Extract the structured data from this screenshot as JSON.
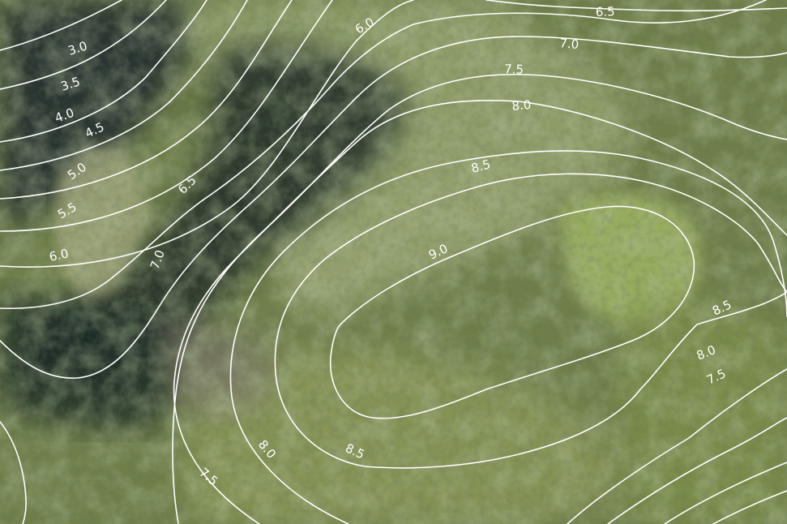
{
  "map": {
    "type": "aerial-contour-map",
    "contour_interval": 0.5,
    "contours": [
      {
        "level": 3.0,
        "label": "3.0"
      },
      {
        "level": 3.5,
        "label": "3.5"
      },
      {
        "level": 4.0,
        "label": "4.0"
      },
      {
        "level": 4.5,
        "label": "4.5"
      },
      {
        "level": 5.0,
        "label": "5.0"
      },
      {
        "level": 5.5,
        "label": "5.5"
      },
      {
        "level": 6.0,
        "label": "6.0"
      },
      {
        "level": 6.5,
        "label": "6.5"
      },
      {
        "level": 7.0,
        "label": "7.0"
      },
      {
        "level": 7.5,
        "label": "7.5"
      },
      {
        "level": 8.0,
        "label": "8.0"
      },
      {
        "level": 8.5,
        "label": "8.5"
      },
      {
        "level": 9.0,
        "label": "9.0"
      }
    ],
    "labels": [
      {
        "text": "3.0",
        "level": 3.0
      },
      {
        "text": "3.5",
        "level": 3.5
      },
      {
        "text": "4.0",
        "level": 4.0
      },
      {
        "text": "4.5",
        "level": 4.5
      },
      {
        "text": "5.0",
        "level": 5.0
      },
      {
        "text": "5.5",
        "level": 5.5
      },
      {
        "text": "6.0",
        "level": 6.0
      },
      {
        "text": "6.0",
        "level": 6.0
      },
      {
        "text": "6.5",
        "level": 6.5
      },
      {
        "text": "6.5",
        "level": 6.5
      },
      {
        "text": "7.0",
        "level": 7.0
      },
      {
        "text": "7.0",
        "level": 7.0
      },
      {
        "text": "7.5",
        "level": 7.5
      },
      {
        "text": "7.5",
        "level": 7.5
      },
      {
        "text": "7.5",
        "level": 7.5
      },
      {
        "text": "8.0",
        "level": 8.0
      },
      {
        "text": "8.0",
        "level": 8.0
      },
      {
        "text": "8.0",
        "level": 8.0
      },
      {
        "text": "8.5",
        "level": 8.5
      },
      {
        "text": "8.5",
        "level": 8.5
      },
      {
        "text": "8.5",
        "level": 8.5
      },
      {
        "text": "9.0",
        "level": 9.0
      }
    ],
    "colors": {
      "contour_line": "#ffffff",
      "label": "#ffffff",
      "grass": "#8a9a63",
      "trees": "#7f8f52",
      "shadow": "#1f2a28",
      "dark_forest": "#2a3431"
    },
    "terrain": [
      "dark-forest",
      "tree-shadow",
      "grass-clearing",
      "tree-canopy"
    ]
  }
}
